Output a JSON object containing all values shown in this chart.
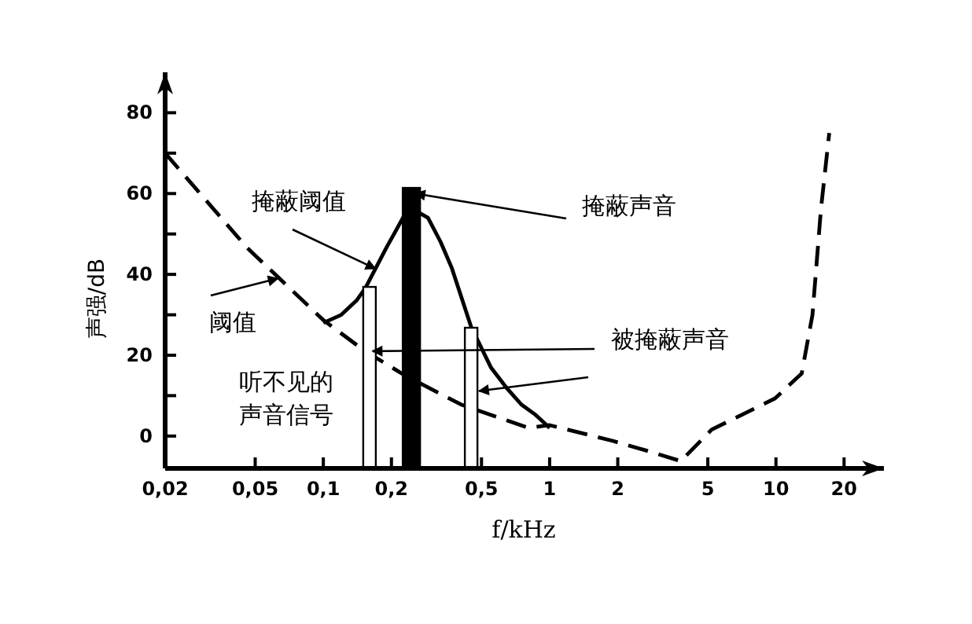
{
  "chart_data": {
    "type": "line",
    "xlabel": "f/kHz",
    "ylabel": "声强/dB",
    "log": "x",
    "xlim": [
      0.02,
      30
    ],
    "ylim": [
      -8,
      90
    ],
    "xticks": [
      {
        "value": 0.02,
        "label": "0,02"
      },
      {
        "value": 0.05,
        "label": "0,05"
      },
      {
        "value": 0.1,
        "label": "0,1"
      },
      {
        "value": 0.2,
        "label": "0,2"
      },
      {
        "value": 0.5,
        "label": "0,5"
      },
      1,
      2,
      5,
      10,
      20
    ],
    "yticks": [
      0,
      {
        "value": 10,
        "label": null
      },
      20,
      {
        "value": 30,
        "label": null
      },
      40,
      {
        "value": 50,
        "label": null
      },
      60,
      {
        "value": 70,
        "label": null
      },
      80
    ],
    "series": [
      {
        "line_style": "dashed",
        "color": "#000000",
        "x": [
          0.02,
          0.046,
          0.1,
          0.153,
          0.228,
          0.406,
          0.81,
          1.0,
          1.9,
          2.8,
          3.8,
          5.2,
          9.9,
          13,
          14.5,
          15.8,
          17.2
        ],
        "values": [
          70,
          46.6,
          28.7,
          21,
          15.1,
          7.8,
          2,
          2.7,
          -1.2,
          -3.9,
          -6.2,
          1.6,
          9.3,
          15.5,
          30,
          56,
          75
        ]
      },
      {
        "type": "line",
        "line_style": "solid",
        "color": "#000000",
        "x": [
          0.1,
          0.12,
          0.14,
          0.153,
          0.17,
          0.19,
          0.21,
          0.23,
          0.26,
          0.29,
          0.33,
          0.37,
          0.45,
          0.55,
          0.65,
          0.75,
          0.86,
          1.0
        ],
        "values": [
          28,
          30,
          33.5,
          36.5,
          41.4,
          46.6,
          51,
          55,
          55.5,
          54,
          48,
          41.5,
          27,
          17,
          11.7,
          7.8,
          5.4,
          2
        ]
      },
      {
        "type": "bar",
        "x": [
          0.16,
          0.245,
          0.45
        ],
        "base": [
          -8,
          -8,
          -8
        ],
        "values": [
          44.9,
          69.4,
          34.8
        ],
        "colors": [
          "#ffffff",
          "#000000",
          "#ffffff"
        ]
      }
    ],
    "annotations": [
      {
        "text": "掩蔽阈值",
        "x": 0.17,
        "y": 41.4
      },
      {
        "text": "掩蔽声音",
        "x": 0.255,
        "y": 60
      },
      {
        "text": "阈值",
        "x": 0.063,
        "y": 39
      },
      {
        "text": "被掩蔽声音",
        "x": 0.165,
        "y": 21
      },
      "听不见的声音信号"
    ]
  }
}
